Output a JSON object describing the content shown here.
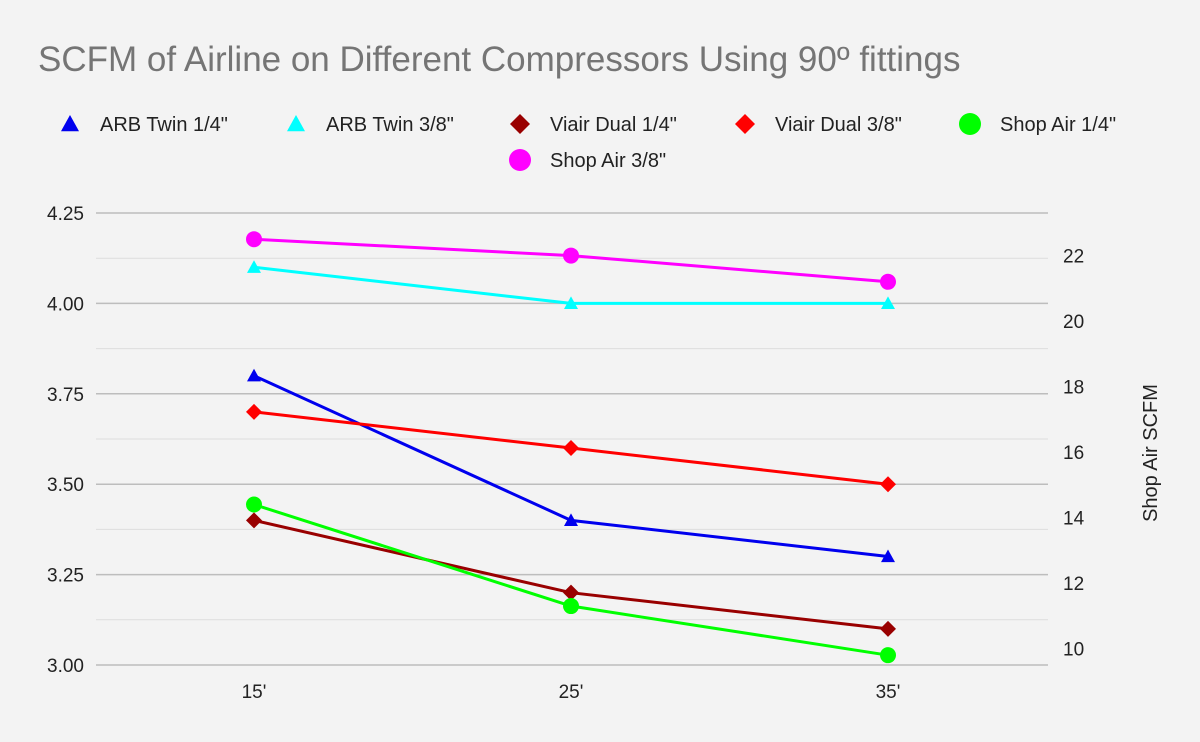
{
  "chart_data": {
    "type": "line",
    "title": "SCFM of Airline on Different Compressors Using 90º fittings",
    "categories": [
      "15'",
      "25'",
      "35'"
    ],
    "xlabel": "",
    "ylabel": "",
    "ylabel_right": "Shop Air SCFM",
    "ylim": [
      3.0,
      4.25
    ],
    "ylim_right": [
      9.5,
      23.3
    ],
    "yticks": [
      "3.00",
      "3.25",
      "3.50",
      "3.75",
      "4.00",
      "4.25"
    ],
    "yticks_right": [
      "10",
      "12",
      "14",
      "16",
      "18",
      "20",
      "22"
    ],
    "grid": true,
    "legend_position": "top",
    "series": [
      {
        "name": "ARB Twin 1/4\"",
        "values": [
          3.8,
          3.4,
          3.3
        ],
        "color": "#0000ee",
        "marker": "triangle",
        "axis": "left"
      },
      {
        "name": "ARB Twin 3/8\"",
        "values": [
          4.1,
          4.0,
          4.0
        ],
        "color": "#00ffff",
        "marker": "triangle",
        "axis": "left"
      },
      {
        "name": "Viair Dual 1/4\"",
        "values": [
          3.4,
          3.2,
          3.1
        ],
        "color": "#990000",
        "marker": "diamond",
        "axis": "left"
      },
      {
        "name": "Viair Dual 3/8\"",
        "values": [
          3.7,
          3.6,
          3.5
        ],
        "color": "#ff0000",
        "marker": "diamond",
        "axis": "left"
      },
      {
        "name": "Shop Air 1/4\"",
        "values": [
          14.4,
          11.3,
          9.8
        ],
        "color": "#00ff00",
        "marker": "circle",
        "axis": "right"
      },
      {
        "name": "Shop Air 3/8\"",
        "values": [
          22.5,
          22.0,
          21.2
        ],
        "color": "#ff00ff",
        "marker": "circle",
        "axis": "right"
      }
    ]
  }
}
